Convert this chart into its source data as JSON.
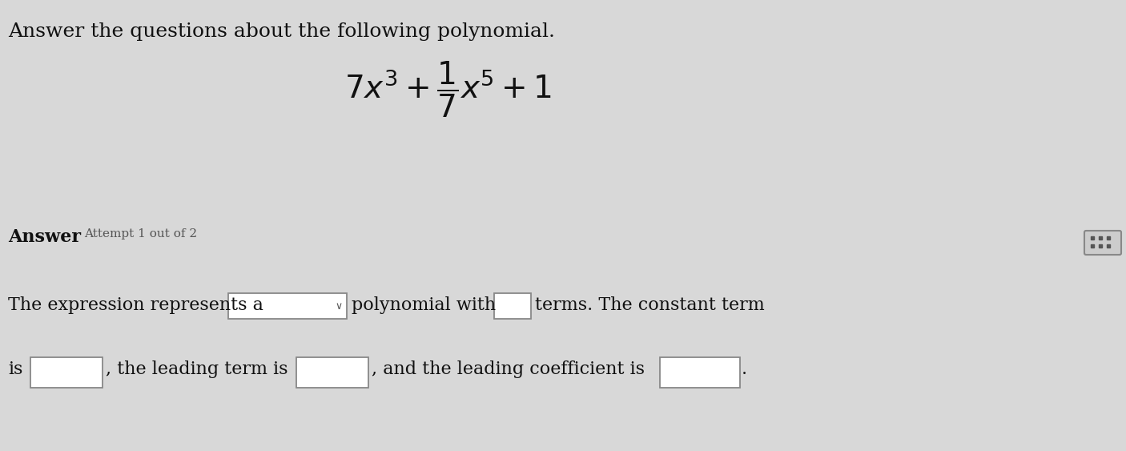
{
  "background_color": "#d8d8d8",
  "title_text": "Answer the questions about the following polynomial.",
  "title_fontsize": 18,
  "title_color": "#111111",
  "polynomial_fontsize": 28,
  "answer_label": "Answer",
  "attempt_label": "Attempt 1 out of 2",
  "body_fontsize": 16,
  "answer_fontsize": 16,
  "attempt_fontsize": 11,
  "box_facecolor": "#ffffff",
  "box_edgecolor": "#888888",
  "dropdown_arrow": "∨"
}
